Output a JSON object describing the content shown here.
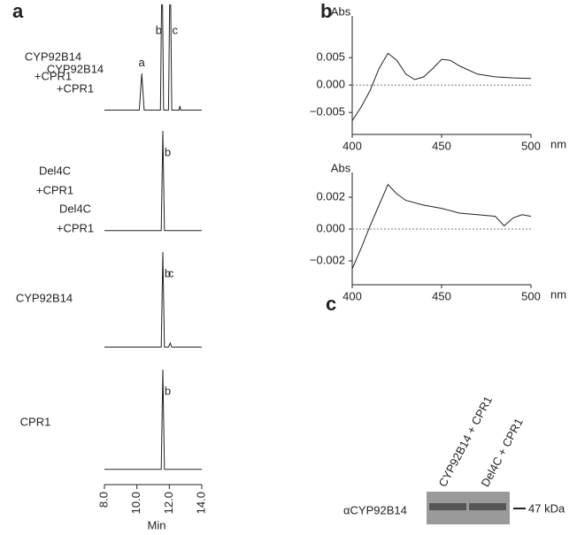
{
  "panels": [
    "a",
    "b",
    "c"
  ],
  "chart_data": [
    {
      "type": "line",
      "label": [
        "CYP92B14",
        "+CPR1"
      ],
      "xlim": [
        8,
        14
      ],
      "ylim": [
        0,
        100
      ],
      "x": [
        8.0,
        10.15,
        10.3,
        10.45,
        11.45,
        11.55,
        11.65,
        11.95,
        12.05,
        12.15,
        12.6,
        12.65,
        12.7,
        14.0
      ],
      "values": [
        3,
        3,
        38,
        3,
        3,
        150,
        3,
        3,
        150,
        3,
        3,
        7,
        3,
        3
      ],
      "annotations": [
        {
          "text": "a",
          "x": 10.3
        },
        {
          "text": "b",
          "x": 11.35
        },
        {
          "text": "c",
          "x": 12.35
        }
      ]
    },
    {
      "type": "line",
      "label": [
        "Del4C",
        "+CPR1"
      ],
      "xlim": [
        8,
        14
      ],
      "ylim": [
        0,
        100
      ],
      "x": [
        8.0,
        11.5,
        11.6,
        11.7,
        14.0
      ],
      "values": [
        2,
        2,
        100,
        2,
        2
      ],
      "annotations": [
        {
          "text": "b",
          "x": 11.9
        }
      ]
    },
    {
      "type": "line",
      "label": [
        "CYP92B14"
      ],
      "xlim": [
        8,
        14
      ],
      "ylim": [
        0,
        100
      ],
      "x": [
        8.0,
        11.5,
        11.6,
        11.7,
        11.95,
        12.05,
        12.15,
        14.0
      ],
      "values": [
        4,
        4,
        100,
        4,
        4,
        8,
        4,
        4
      ],
      "annotations": [
        {
          "text": "b",
          "x": 11.9
        },
        {
          "text": "c",
          "x": 12.1
        }
      ]
    },
    {
      "type": "line",
      "label": [
        "CPR1"
      ],
      "xlim": [
        8,
        14
      ],
      "ylim": [
        0,
        100
      ],
      "x": [
        8.0,
        11.5,
        11.6,
        11.7,
        14.0
      ],
      "values": [
        2,
        2,
        100,
        2,
        2
      ],
      "annotations": [
        {
          "text": "b",
          "x": 11.9
        }
      ],
      "xticks": [
        {
          "value": 8,
          "label": "8.0"
        },
        {
          "value": 10,
          "label": "10.0"
        },
        {
          "value": 12,
          "label": "12.0"
        },
        {
          "value": 14,
          "label": "14.0"
        }
      ],
      "x_label": "Min"
    },
    {
      "type": "spectrum",
      "label": [
        "CYP92B14",
        "+CPR1"
      ],
      "y_label": "Abs",
      "x_unit": "nm",
      "xlim": [
        400,
        500
      ],
      "ylim": [
        -0.009,
        0.011
      ],
      "xticks": [
        400,
        450,
        500
      ],
      "yticks": [
        {
          "value": 0.005,
          "label": "0.005"
        },
        {
          "value": 0,
          "label": "0.000"
        },
        {
          "value": -0.005,
          "label": "−0.005"
        }
      ],
      "zero_line": true,
      "x": [
        400,
        405,
        410,
        415,
        420,
        425,
        430,
        435,
        440,
        445,
        450,
        455,
        460,
        470,
        480,
        490,
        500
      ],
      "values": [
        -0.0065,
        -0.004,
        -0.001,
        0.003,
        0.0058,
        0.0045,
        0.002,
        0.001,
        0.0015,
        0.003,
        0.0047,
        0.0045,
        0.0035,
        0.002,
        0.0015,
        0.0013,
        0.0012
      ]
    },
    {
      "type": "spectrum",
      "label": [
        "Del4C",
        "+CPR1"
      ],
      "y_label": "Abs",
      "x_unit": "nm",
      "xlim": [
        400,
        500
      ],
      "ylim": [
        -0.0035,
        0.003
      ],
      "xticks": [
        400,
        450,
        500
      ],
      "yticks": [
        {
          "value": 0.002,
          "label": "0.002"
        },
        {
          "value": 0,
          "label": "0.000"
        },
        {
          "value": -0.002,
          "label": "−0.002"
        }
      ],
      "zero_line": true,
      "x": [
        400,
        405,
        410,
        415,
        420,
        425,
        430,
        440,
        450,
        460,
        470,
        480,
        485,
        490,
        495,
        500
      ],
      "values": [
        -0.0025,
        -0.0012,
        0.0002,
        0.0015,
        0.0028,
        0.0022,
        0.0018,
        0.0015,
        0.0013,
        0.001,
        0.0009,
        0.0008,
        0.0002,
        0.0007,
        0.0009,
        0.0008
      ]
    }
  ],
  "blot": {
    "lanes": [
      "CYP92B14 + CPR1",
      "Del4C + CPR1"
    ],
    "antibody": "αCYP92B14",
    "marker": "47 kDa"
  }
}
